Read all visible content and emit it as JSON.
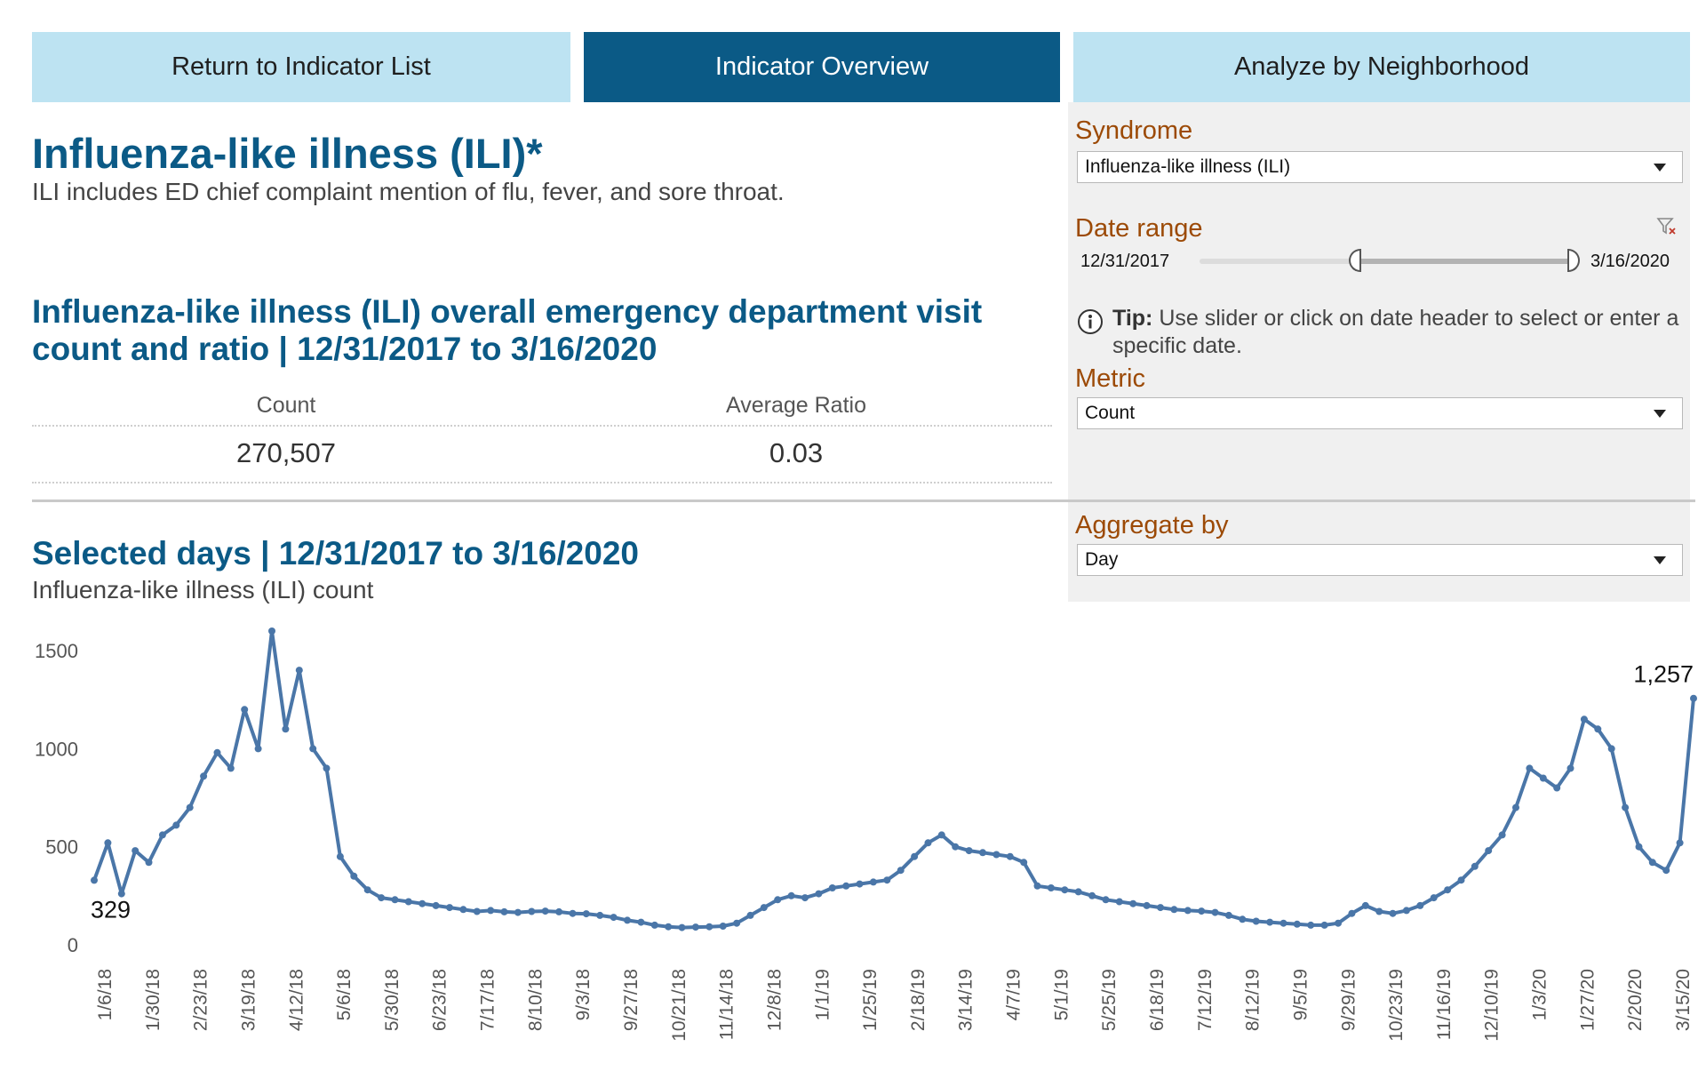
{
  "tabs": {
    "return_label": "Return to Indicator List",
    "overview_label": "Indicator Overview",
    "analyze_label": "Analyze by Neighborhood"
  },
  "header": {
    "title": "Influenza-like illness (ILI)*",
    "subtitle": "ILI includes ED chief complaint mention of flu, fever, and sore throat."
  },
  "summary": {
    "heading": "Influenza-like illness (ILI) overall emergency department visit count and ratio | 12/31/2017 to 3/16/2020",
    "count_label": "Count",
    "count_value": "270,507",
    "ratio_label": "Average Ratio",
    "ratio_value": "0.03"
  },
  "selected": {
    "heading": "Selected days | 12/31/2017 to 3/16/2020",
    "subheading": "Influenza-like illness (ILI) count"
  },
  "filters": {
    "syndrome_label": "Syndrome",
    "syndrome_value": "Influenza-like illness (ILI)",
    "date_range_label": "Date range",
    "date_start": "12/31/2017",
    "date_end": "3/16/2020",
    "slider_start_fraction": 0.42,
    "slider_end_fraction": 1.0,
    "tip_bold": "Tip:",
    "tip_text": "Use slider or click on date header to select or enter a specific date.",
    "metric_label": "Metric",
    "metric_value": "Count",
    "aggregate_label": "Aggregate by",
    "aggregate_value": "Day",
    "clear_filter_icon": "filter-clear-icon",
    "info_icon": "info-circle-icon",
    "dropdown_icon": "chevron-down-icon"
  },
  "colors": {
    "tab_inactive": "#bde3f2",
    "tab_active": "#0b5a86",
    "heading_blue": "#0b5a86",
    "filter_label": "#9c4a06",
    "panel_bg": "#f0f0f0",
    "series_line": "#4a76a8"
  },
  "chart_data": {
    "type": "line",
    "title": "Selected days | 12/31/2017 to 3/16/2020",
    "ylabel": "Influenza-like illness (ILI) count",
    "xlabel": "",
    "ylim": [
      0,
      1600
    ],
    "y_ticks": [
      0,
      500,
      1000,
      1500
    ],
    "x_tick_labels": [
      "1/6/18",
      "1/30/18",
      "2/23/18",
      "3/19/18",
      "4/12/18",
      "5/6/18",
      "5/30/18",
      "6/23/18",
      "7/17/18",
      "8/10/18",
      "9/3/18",
      "9/27/18",
      "10/21/18",
      "11/14/18",
      "12/8/18",
      "1/1/19",
      "1/25/19",
      "2/18/19",
      "3/14/19",
      "4/7/19",
      "5/1/19",
      "5/25/19",
      "6/18/19",
      "7/12/19",
      "8/12/19",
      "9/5/19",
      "9/29/19",
      "10/23/19",
      "11/16/19",
      "12/10/19",
      "1/3/20",
      "1/27/20",
      "2/20/20",
      "3/15/20"
    ],
    "annotations": [
      {
        "label": "329",
        "at": "first point"
      },
      {
        "label": "1,257",
        "at": "last point"
      }
    ],
    "series": [
      {
        "values": [
          329,
          520,
          260,
          480,
          420,
          560,
          610,
          700,
          860,
          980,
          900,
          1200,
          1000,
          1600,
          1100,
          1400,
          1000,
          900,
          450,
          350,
          280,
          240,
          230,
          220,
          210,
          200,
          190,
          180,
          170,
          175,
          168,
          165,
          170,
          172,
          168,
          160,
          158,
          150,
          140,
          125,
          115,
          100,
          92,
          88,
          90,
          92,
          95,
          110,
          150,
          190,
          230,
          250,
          240,
          260,
          290,
          300,
          310,
          320,
          330,
          380,
          450,
          520,
          560,
          500,
          480,
          470,
          460,
          450,
          420,
          300,
          290,
          280,
          270,
          250,
          230,
          220,
          210,
          200,
          190,
          180,
          175,
          172,
          165,
          150,
          130,
          120,
          115,
          110,
          105,
          100,
          100,
          110,
          160,
          200,
          170,
          160,
          175,
          200,
          240,
          280,
          330,
          400,
          480,
          560,
          700,
          900,
          850,
          800,
          900,
          1150,
          1100,
          1000,
          700,
          500,
          420,
          380,
          520,
          1257
        ]
      }
    ]
  }
}
